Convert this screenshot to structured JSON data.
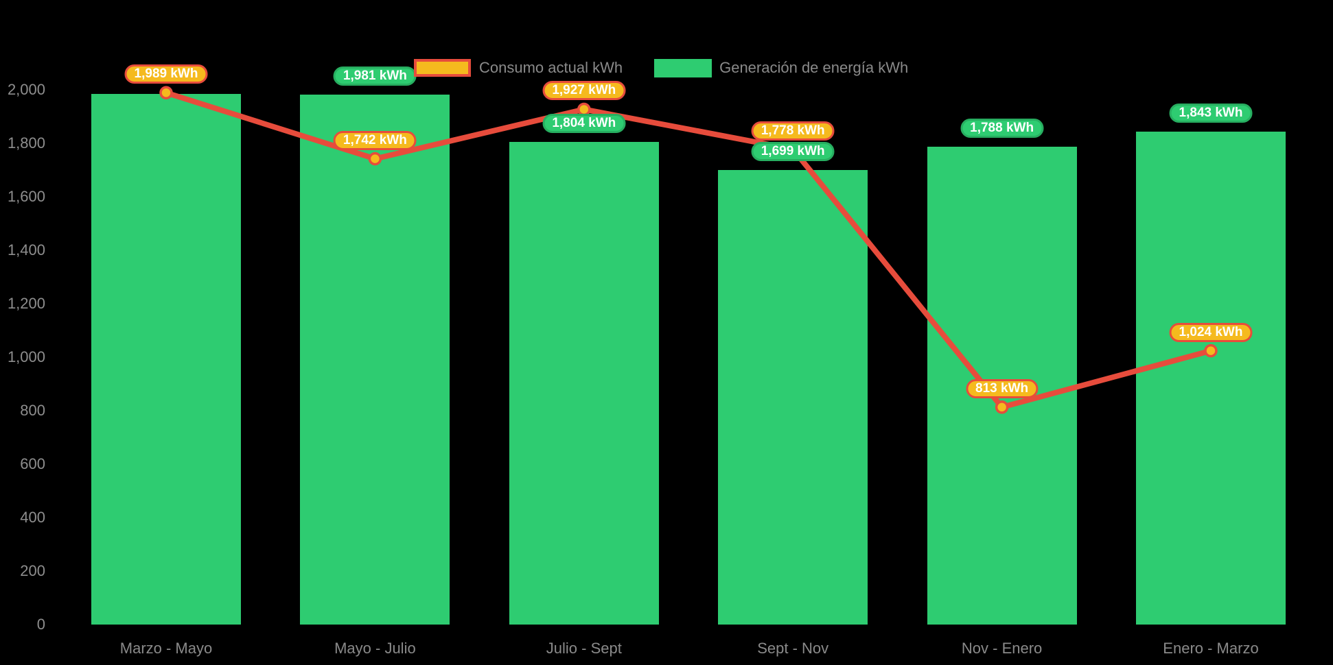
{
  "background_color": "#000000",
  "legend": {
    "items": [
      {
        "label": "Consumo actual kWh",
        "swatch_color": "#F5BA1E",
        "swatch_border": "#E74C3C"
      },
      {
        "label": "Generación de energía kWh",
        "swatch_color": "#2ECC71"
      }
    ]
  },
  "axes": {
    "y_ticks": [
      "0",
      "200",
      "400",
      "600",
      "800",
      "1,000",
      "1,200",
      "1,400",
      "1,600",
      "1,800",
      "2,000"
    ],
    "x_labels": [
      "Marzo - Mayo",
      "Mayo - Julio",
      "Julio - Sept",
      "Sept - Nov",
      "Nov - Enero",
      "Enero - Marzo"
    ]
  },
  "chart_data": {
    "type": "bar",
    "subtype": "bar-and-line-combo",
    "categories": [
      "Marzo - Mayo",
      "Mayo - Julio",
      "Julio - Sept",
      "Sept - Nov",
      "Nov - Enero",
      "Enero - Marzo"
    ],
    "series": [
      {
        "name": "Generación de energía kWh",
        "type": "bar",
        "color": "#2ECC71",
        "values": [
          1985,
          1981,
          1804,
          1699,
          1788,
          1843
        ],
        "data_labels": [
          null,
          "1,981 kWh",
          "1,804 kWh",
          "1,699 kWh",
          "1,788 kWh",
          "1,843 kWh"
        ],
        "label_fill": "#2ECC71",
        "label_border": "#27AE60",
        "label_text_color": "#FFFFFF"
      },
      {
        "name": "Consumo actual kWh",
        "type": "line",
        "color": "#E74C3C",
        "marker_fill": "#F5BA1E",
        "marker_border": "#E74C3C",
        "values": [
          1989,
          1742,
          1927,
          1778,
          813,
          1024
        ],
        "data_labels": [
          "1,989 kWh",
          "1,742 kWh",
          "1,927 kWh",
          "1,778 kWh",
          "813 kWh",
          "1,024 kWh"
        ],
        "label_fill": "#F5BA1E",
        "label_border": "#E74C3C",
        "label_text_color": "#FFFFFF"
      }
    ],
    "ylim": [
      0,
      2000
    ],
    "y_tick_step": 200,
    "grid": false,
    "legend_position": "top",
    "axis_text_color": "#8E8E8E"
  }
}
